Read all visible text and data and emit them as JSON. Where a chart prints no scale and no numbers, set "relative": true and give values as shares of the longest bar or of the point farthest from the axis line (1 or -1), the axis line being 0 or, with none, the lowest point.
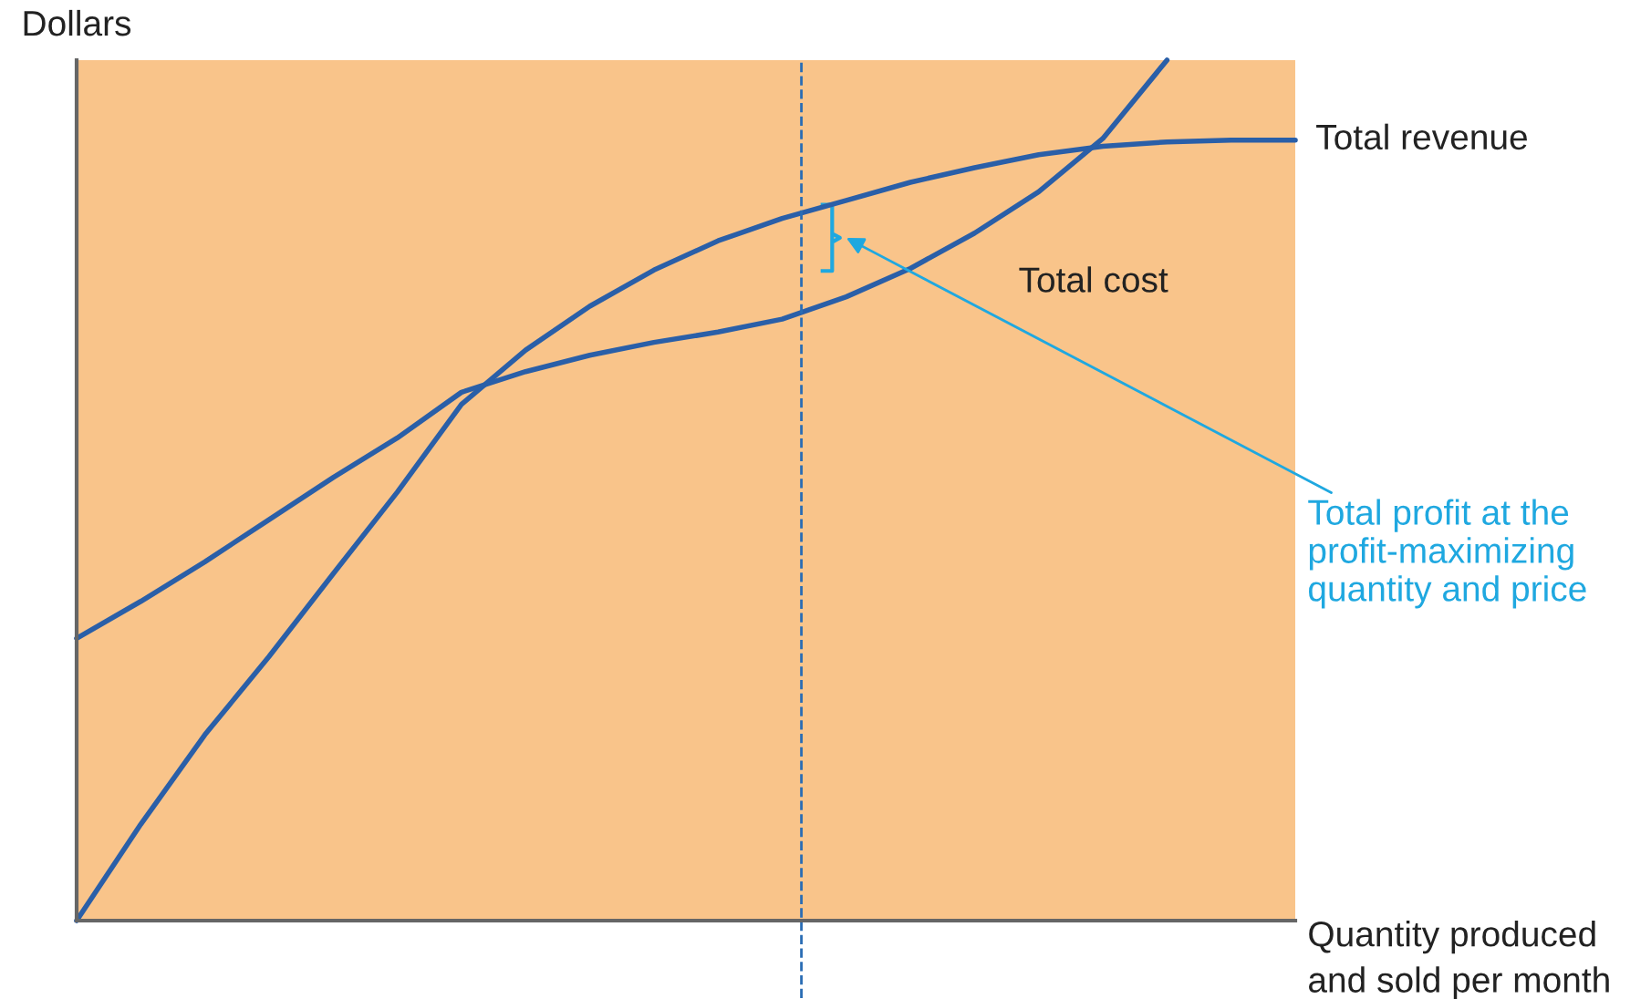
{
  "chart_data": {
    "type": "line",
    "relative": true,
    "xlabel": "Quantity produced\nand sold per month",
    "ylabel": "Dollars",
    "categories": [
      null,
      null,
      null,
      null,
      null,
      null,
      null,
      null,
      null,
      null,
      null,
      null,
      null,
      null,
      null,
      null,
      null,
      null,
      null,
      null
    ],
    "series": [
      {
        "name": "Total revenue",
        "color": "#2a5fa8",
        "values": [
          0,
          0.112,
          0.216,
          0.307,
          0.403,
          0.498,
          0.6,
          0.663,
          0.714,
          0.756,
          0.79,
          0.816,
          0.837,
          0.858,
          0.875,
          0.89,
          0.9,
          0.905,
          0.907,
          0.907
        ]
      },
      {
        "name": "Total cost",
        "color": "#2a5fa8",
        "values": [
          0.328,
          0.371,
          0.417,
          0.466,
          0.515,
          0.561,
          0.614,
          0.638,
          0.657,
          0.672,
          0.684,
          0.699,
          0.725,
          0.758,
          0.799,
          0.847,
          0.909,
          1.0,
          null,
          null
        ]
      }
    ],
    "annotations": [
      "Total profit at the\nprofit-maximizing\nquantity and price"
    ],
    "grid": false,
    "legend": false,
    "marker": "none",
    "line_style": "solid"
  }
}
